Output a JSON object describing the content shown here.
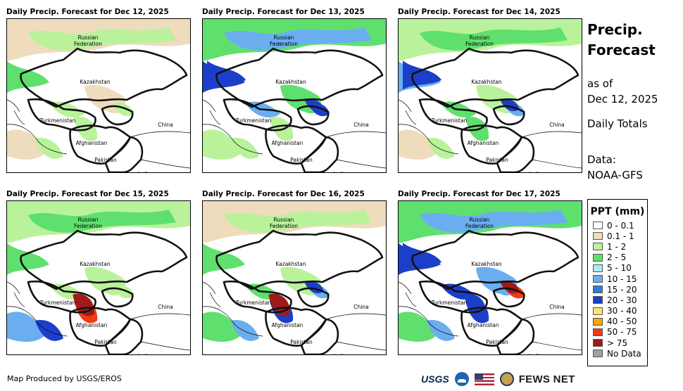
{
  "panels": [
    {
      "title": "Daily Precip. Forecast for Dec 12, 2025",
      "precip": {
        "north": "light",
        "central": "low",
        "south": "low"
      }
    },
    {
      "title": "Daily Precip. Forecast for Dec 13, 2025",
      "precip": {
        "north": "moderate",
        "central": "moderate",
        "south": "low"
      }
    },
    {
      "title": "Daily Precip. Forecast for Dec 14, 2025",
      "precip": {
        "north": "moderate",
        "central": "moderate",
        "south": "light"
      }
    },
    {
      "title": "Daily Precip. Forecast for Dec 15, 2025",
      "precip": {
        "north": "light",
        "central": "low",
        "south": "heavy"
      }
    },
    {
      "title": "Daily Precip. Forecast for Dec 16, 2025",
      "precip": {
        "north": "light",
        "central": "moderate",
        "south": "heavy"
      }
    },
    {
      "title": "Daily Precip. Forecast for Dec 17, 2025",
      "precip": {
        "north": "moderate",
        "central": "heavy",
        "south": "moderate"
      }
    }
  ],
  "map_labels": {
    "russia": "Russian",
    "federation": "Federation",
    "kazakhstan": "Kazakhstan",
    "turkmenistan": "Turkmenistan",
    "afghanistan": "Afghanistan",
    "pakistan": "Pakistan",
    "china": "China",
    "india": "India"
  },
  "sidebar": {
    "title_line1": "Precip.",
    "title_line2": "Forecast",
    "asof_line1": "as of",
    "asof_line2": "Dec 12, 2025",
    "totals": "Daily Totals",
    "data_line1": "Data:",
    "data_line2": "NOAA-GFS"
  },
  "legend": {
    "title": "PPT (mm)",
    "items": [
      {
        "label": "0 - 0.1",
        "color": "#ffffff"
      },
      {
        "label": "0.1 - 1",
        "color": "#efdcbc"
      },
      {
        "label": "1 - 2",
        "color": "#b9f29b"
      },
      {
        "label": "2 - 5",
        "color": "#5fe06e"
      },
      {
        "label": "5 - 10",
        "color": "#a9ecf5"
      },
      {
        "label": "10 - 15",
        "color": "#6aaef0"
      },
      {
        "label": "15 - 20",
        "color": "#2f7ae0"
      },
      {
        "label": "20 - 30",
        "color": "#1c3fc9"
      },
      {
        "label": "30 - 40",
        "color": "#ffe46b"
      },
      {
        "label": "40 - 50",
        "color": "#ffa400"
      },
      {
        "label": "50 - 75",
        "color": "#f23a12"
      },
      {
        "label": "> 75",
        "color": "#a01a1a"
      },
      {
        "label": "No Data",
        "color": "#a0a0a0"
      }
    ]
  },
  "footer": {
    "credit": "Map Produced by USGS/EROS",
    "usgs": "USGS",
    "fews": "FEWS NET"
  }
}
